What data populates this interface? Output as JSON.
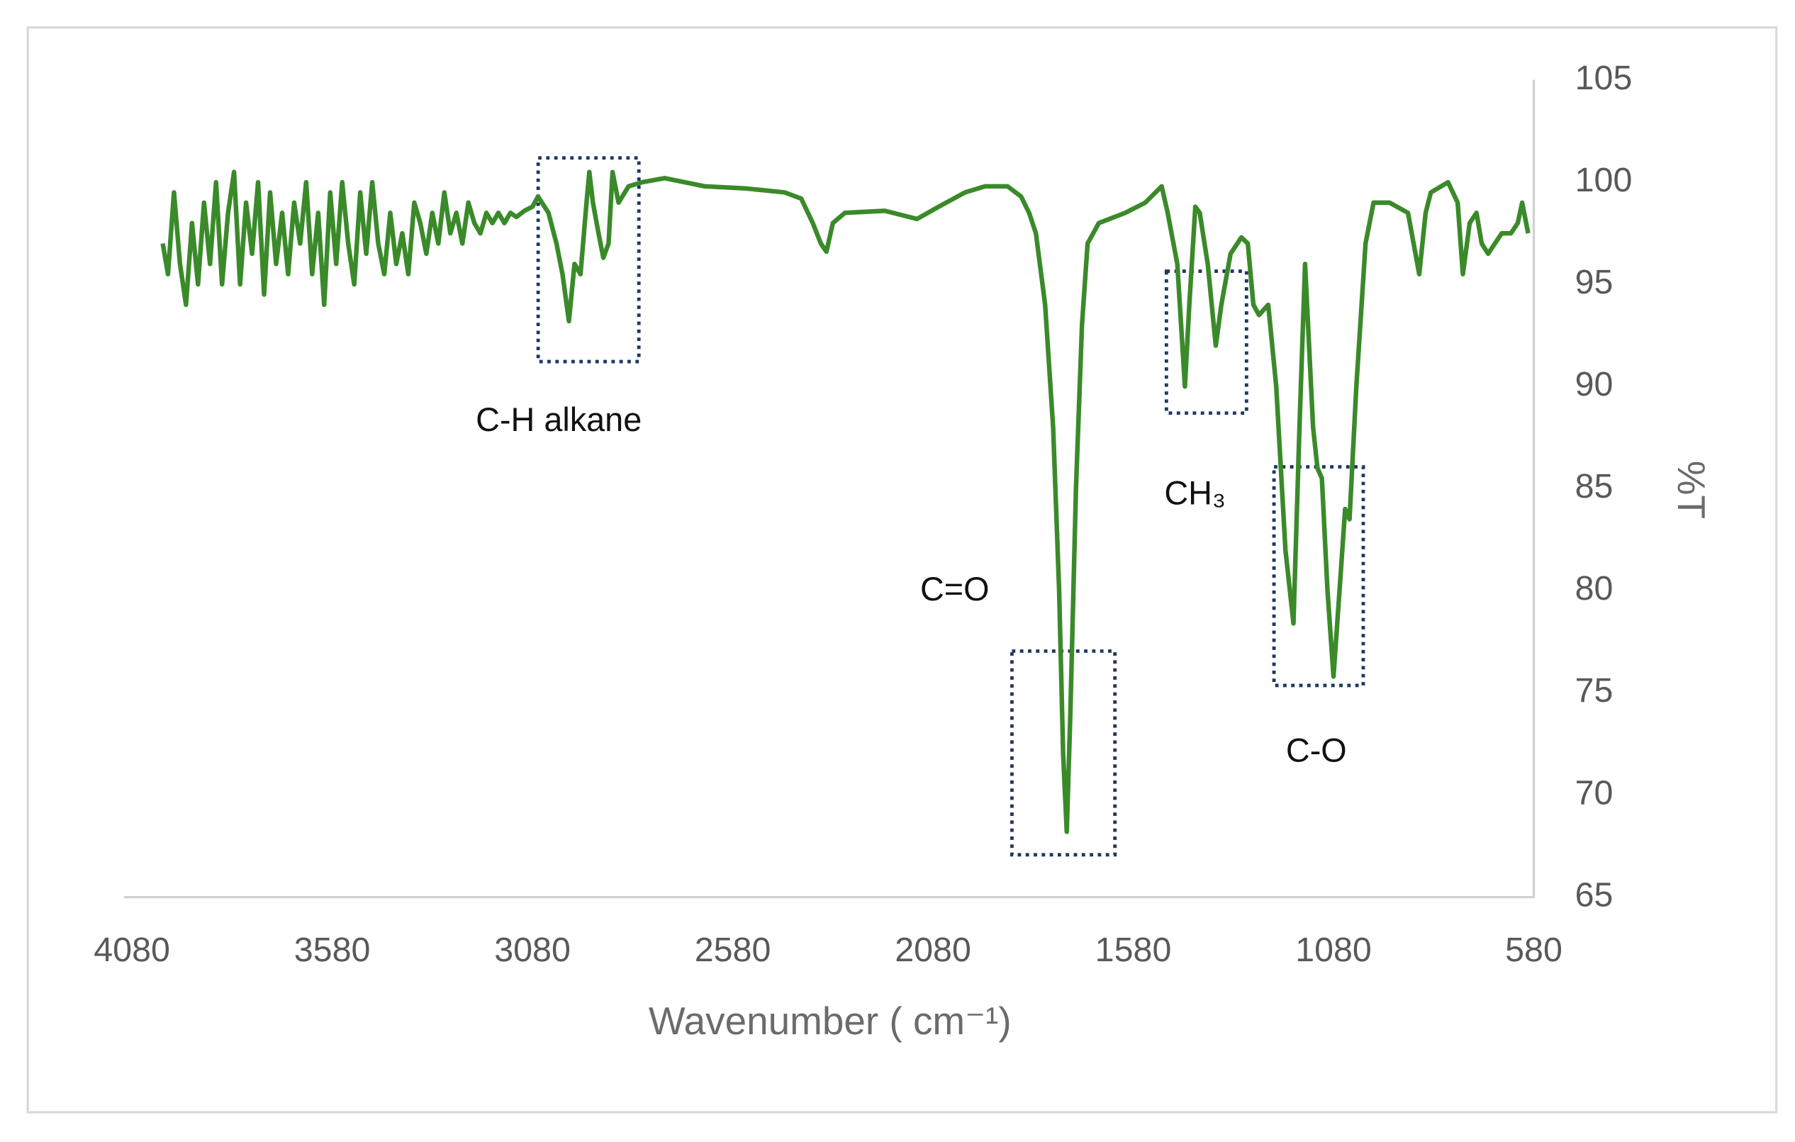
{
  "chart_data": {
    "type": "line",
    "x_label": "Wavenumber ( cm⁻¹)",
    "y_label": "%T",
    "annotations": [
      "C-H alkane",
      "C=O",
      "CH₃",
      "C-O"
    ],
    "color": "#3a8a2a",
    "xlim": [
      4080,
      580
    ],
    "xticks": [
      4080,
      3580,
      3080,
      2580,
      2080,
      1580,
      1080,
      580
    ],
    "ylim": [
      65,
      105
    ],
    "yticks": [
      65,
      70,
      75,
      80,
      85,
      90,
      95,
      100,
      105
    ],
    "grid": false,
    "x": [
      4003,
      3990,
      3975,
      3960,
      3945,
      3930,
      3915,
      3900,
      3885,
      3870,
      3855,
      3840,
      3825,
      3810,
      3795,
      3780,
      3765,
      3750,
      3735,
      3720,
      3705,
      3690,
      3675,
      3660,
      3645,
      3630,
      3615,
      3600,
      3585,
      3570,
      3555,
      3540,
      3525,
      3510,
      3495,
      3480,
      3465,
      3450,
      3435,
      3420,
      3405,
      3390,
      3375,
      3360,
      3345,
      3330,
      3315,
      3300,
      3285,
      3270,
      3255,
      3240,
      3225,
      3210,
      3195,
      3180,
      3165,
      3150,
      3135,
      3120,
      3100,
      3080,
      3066,
      3040,
      3020,
      3005,
      2989,
      2975,
      2960,
      2945,
      2938,
      2929,
      2915,
      2903,
      2890,
      2880,
      2865,
      2840,
      2806,
      2750,
      2650,
      2550,
      2450,
      2409,
      2380,
      2360,
      2346,
      2330,
      2300,
      2200,
      2120,
      2066,
      2000,
      1950,
      1894,
      1860,
      1840,
      1823,
      1800,
      1780,
      1765,
      1755,
      1746,
      1737,
      1723,
      1708,
      1694,
      1666,
      1600,
      1550,
      1509,
      1494,
      1470,
      1451,
      1440,
      1425,
      1414,
      1394,
      1374,
      1360,
      1337,
      1310,
      1294,
      1280,
      1266,
      1243,
      1223,
      1200,
      1180,
      1165,
      1151,
      1131,
      1120,
      1109,
      1095,
      1080,
      1065,
      1051,
      1040,
      1023,
      1000,
      980,
      940,
      894,
      880,
      866,
      850,
      837,
      794,
      770,
      757,
      740,
      723,
      710,
      694,
      660,
      637,
      620,
      609,
      594
    ],
    "values": [
      97,
      95.5,
      99.5,
      96,
      94,
      98,
      95,
      99,
      96,
      100,
      95,
      98.5,
      100.5,
      95,
      99,
      96.5,
      100,
      94.5,
      99.5,
      96,
      98.5,
      95.5,
      99,
      97,
      100,
      95.5,
      98.5,
      94,
      99.5,
      96,
      100,
      97,
      95,
      99.5,
      96.5,
      100,
      97,
      95.5,
      98.5,
      96,
      97.5,
      95.5,
      99,
      98,
      96.5,
      98.5,
      97,
      99.5,
      97.5,
      98.5,
      97,
      99,
      98,
      97.5,
      98.5,
      98,
      98.5,
      98,
      98.5,
      98.3,
      98.6,
      98.8,
      99.3,
      98.5,
      97,
      95.5,
      93.2,
      96,
      95.5,
      99,
      100.5,
      99,
      97.5,
      96.3,
      97,
      100.5,
      99,
      99.8,
      100,
      100.2,
      99.8,
      99.7,
      99.5,
      99.2,
      98,
      97,
      96.6,
      98,
      98.5,
      98.6,
      98.2,
      98.8,
      99.5,
      99.8,
      99.8,
      99.3,
      98.5,
      97.5,
      94,
      88,
      80,
      72,
      68.2,
      74,
      85,
      93,
      97,
      98,
      98.5,
      99,
      99.8,
      98.5,
      96,
      90,
      94,
      98.8,
      98.5,
      96,
      92,
      94,
      96.5,
      97.3,
      97,
      94,
      93.5,
      94,
      90,
      82,
      78.4,
      88,
      96,
      88,
      86,
      85.5,
      80,
      75.8,
      80,
      84,
      83.5,
      90,
      97,
      99,
      99,
      98.5,
      97,
      95.5,
      98.5,
      99.5,
      100,
      99,
      95.5,
      98,
      98.5,
      97,
      96.5,
      97.5,
      97.5,
      98,
      99,
      97.5
    ]
  }
}
